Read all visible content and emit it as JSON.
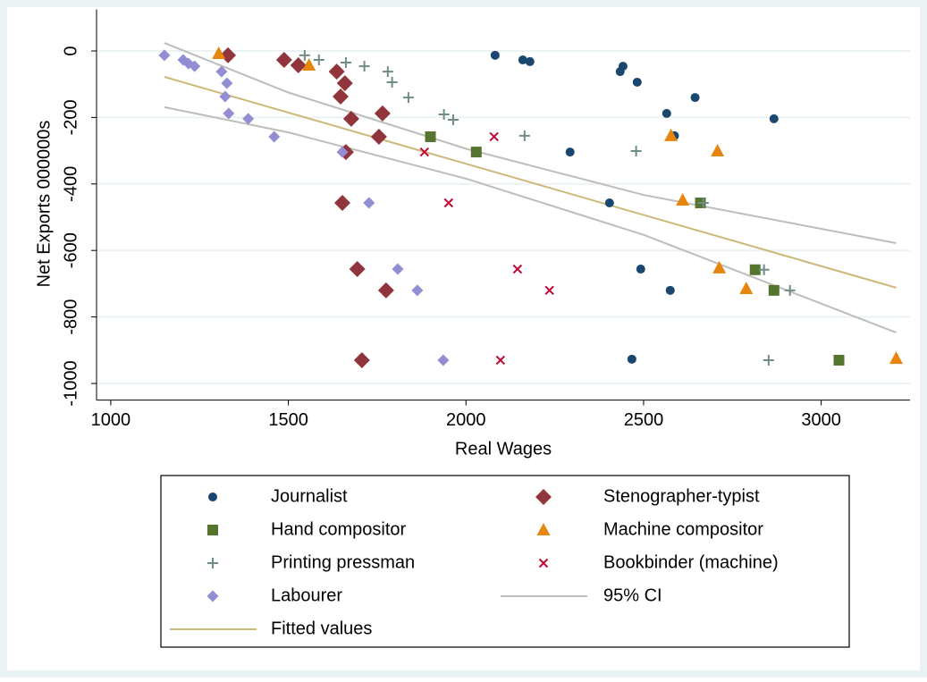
{
  "chart_data": {
    "type": "scatter",
    "x_label": "Real Wages",
    "y_label": "Net Exports 000000s",
    "xlim": [
      960,
      3250
    ],
    "ylim": [
      -1050,
      125
    ],
    "xticks": [
      1000,
      1500,
      2000,
      2500,
      3000
    ],
    "yticks": [
      0,
      -200,
      -400,
      -600,
      -800,
      -1000
    ],
    "grid": true,
    "series": [
      {
        "name": "Journalist",
        "type": "scatter",
        "marker": "circle",
        "color": "#1a476f",
        "x": [
          2082,
          2160,
          2180,
          2442,
          2434,
          2482,
          2565,
          2587,
          2645,
          2867,
          2293,
          2404,
          2492,
          2575,
          2467
        ],
        "values": [
          -13,
          -27,
          -32,
          -46,
          -62,
          -94,
          -188,
          -255,
          -140,
          -204,
          -304,
          -457,
          -656,
          -720,
          -927
        ]
      },
      {
        "name": "Stenographer-typist",
        "type": "scatter",
        "marker": "diamond",
        "color": "#90353b",
        "x": [
          1330,
          1488,
          1528,
          1636,
          1659,
          1647,
          1677,
          1765,
          1755,
          1662,
          1652,
          1694,
          1775,
          1707
        ],
        "values": [
          -13,
          -27,
          -43,
          -62,
          -97,
          -137,
          -204,
          -188,
          -258,
          -304,
          -457,
          -656,
          -720,
          -930
        ]
      },
      {
        "name": "Hand compositor",
        "type": "scatter",
        "marker": "square",
        "color": "#55752f",
        "x": [
          1900,
          2029,
          2660,
          2814,
          2867,
          3050
        ],
        "values": [
          -258,
          -304,
          -457,
          -658,
          -720,
          -930
        ]
      },
      {
        "name": "Machine compositor",
        "type": "scatter",
        "marker": "triangle",
        "color": "#e8850c",
        "x": [
          1304,
          1558,
          2577,
          2610,
          2708,
          2713,
          2789,
          3211
        ],
        "values": [
          -8,
          -43,
          -255,
          -449,
          -301,
          -653,
          -715,
          -925
        ]
      },
      {
        "name": "Printing pressman",
        "type": "scatter",
        "marker": "plus",
        "color": "#6e8e84",
        "x": [
          1546,
          1586,
          1662,
          1714,
          1780,
          1792,
          1838,
          1938,
          1964,
          2165,
          2479,
          2668,
          2839,
          2912,
          2852
        ],
        "values": [
          -13,
          -27,
          -35,
          -46,
          -62,
          -94,
          -140,
          -191,
          -207,
          -255,
          -301,
          -457,
          -658,
          -720,
          -930
        ]
      },
      {
        "name": "Bookbinder (machine)",
        "type": "scatter",
        "marker": "x",
        "color": "#c10534",
        "x": [
          2079,
          1883,
          1951,
          2145,
          2235,
          2097
        ],
        "values": [
          -258,
          -304,
          -457,
          -656,
          -720,
          -930
        ]
      },
      {
        "name": "Labourer",
        "type": "scatter",
        "marker": "diamond-small",
        "color": "#938dd2",
        "x": [
          1151,
          1204,
          1219,
          1236,
          1312,
          1322,
          1327,
          1332,
          1387,
          1460,
          1652,
          1727,
          1808,
          1863,
          1936
        ],
        "values": [
          -13,
          -27,
          -38,
          -46,
          -62,
          -137,
          -97,
          -188,
          -204,
          -258,
          -304,
          -457,
          -656,
          -720,
          -930
        ]
      },
      {
        "name": "95% CI",
        "type": "band",
        "color": "#bdbdbd",
        "x": [
          1151,
          1500,
          2000,
          2500,
          3211
        ],
        "values": [
          24,
          -125,
          -294,
          -433,
          -578
        ],
        "lower": [
          -169,
          -245,
          -384,
          -553,
          -847
        ]
      },
      {
        "name": "Fitted values",
        "type": "line",
        "color": "#cdb879",
        "x": [
          1151,
          3211
        ],
        "values": [
          -78,
          -712
        ]
      }
    ]
  }
}
